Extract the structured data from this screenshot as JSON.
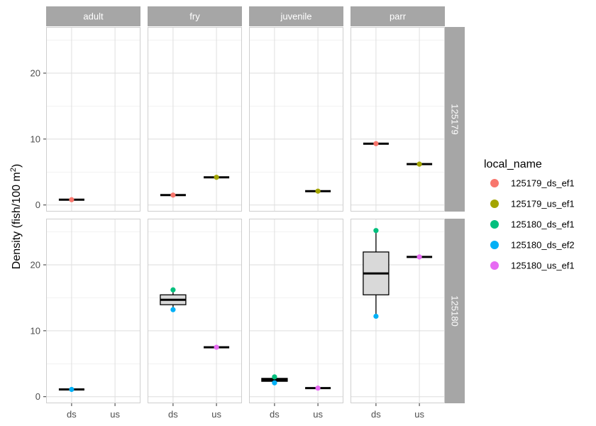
{
  "chart_data": {
    "type": "box",
    "ylabel": "Density (fish/100 m",
    "ylabel_superscript": "2",
    "ylabel_close": ")",
    "facet_cols": [
      "adult",
      "fry",
      "juvenile",
      "parr"
    ],
    "facet_rows": [
      "125179",
      "125180"
    ],
    "x_categories": [
      "ds",
      "us"
    ],
    "ylim": [
      -1,
      27
    ],
    "y_ticks": [
      0,
      10,
      20
    ],
    "grid": true,
    "legend": {
      "title": "local_name",
      "position": "right",
      "entries": [
        {
          "name": "125179_ds_ef1",
          "color": "#F8766D"
        },
        {
          "name": "125179_us_ef1",
          "color": "#A3A500"
        },
        {
          "name": "125180_ds_ef1",
          "color": "#00BF7D"
        },
        {
          "name": "125180_ds_ef2",
          "color": "#00B0F6"
        },
        {
          "name": "125180_us_ef1",
          "color": "#E76BF3"
        }
      ]
    },
    "panels": [
      {
        "row": "125179",
        "col": "adult",
        "boxes": [
          {
            "x": "ds",
            "lower": 0.8,
            "q1": 0.8,
            "median": 0.8,
            "q3": 0.8,
            "upper": 0.8,
            "points": [
              {
                "y": 0.8,
                "series": "125179_ds_ef1"
              }
            ]
          }
        ]
      },
      {
        "row": "125179",
        "col": "fry",
        "boxes": [
          {
            "x": "ds",
            "lower": 1.5,
            "q1": 1.5,
            "median": 1.5,
            "q3": 1.5,
            "upper": 1.5,
            "points": [
              {
                "y": 1.5,
                "series": "125179_ds_ef1"
              }
            ]
          },
          {
            "x": "us",
            "lower": 4.2,
            "q1": 4.2,
            "median": 4.2,
            "q3": 4.2,
            "upper": 4.2,
            "points": [
              {
                "y": 4.2,
                "series": "125179_us_ef1"
              }
            ]
          }
        ]
      },
      {
        "row": "125179",
        "col": "juvenile",
        "boxes": [
          {
            "x": "us",
            "lower": 2.1,
            "q1": 2.1,
            "median": 2.1,
            "q3": 2.1,
            "upper": 2.1,
            "points": [
              {
                "y": 2.1,
                "series": "125179_us_ef1"
              }
            ]
          }
        ]
      },
      {
        "row": "125179",
        "col": "parr",
        "boxes": [
          {
            "x": "ds",
            "lower": 9.3,
            "q1": 9.3,
            "median": 9.3,
            "q3": 9.3,
            "upper": 9.3,
            "points": [
              {
                "y": 9.3,
                "series": "125179_ds_ef1"
              }
            ]
          },
          {
            "x": "us",
            "lower": 6.2,
            "q1": 6.2,
            "median": 6.2,
            "q3": 6.2,
            "upper": 6.2,
            "points": [
              {
                "y": 6.2,
                "series": "125179_us_ef1"
              }
            ]
          }
        ]
      },
      {
        "row": "125180",
        "col": "adult",
        "boxes": [
          {
            "x": "ds",
            "lower": 1.1,
            "q1": 1.1,
            "median": 1.1,
            "q3": 1.1,
            "upper": 1.1,
            "points": [
              {
                "y": 1.1,
                "series": "125180_ds_ef2"
              }
            ]
          }
        ]
      },
      {
        "row": "125180",
        "col": "fry",
        "boxes": [
          {
            "x": "ds",
            "lower": 13.2,
            "q1": 13.95,
            "median": 14.7,
            "q3": 15.45,
            "upper": 16.2,
            "points": [
              {
                "y": 16.2,
                "series": "125180_ds_ef1"
              },
              {
                "y": 13.2,
                "series": "125180_ds_ef2"
              }
            ]
          },
          {
            "x": "us",
            "lower": 7.5,
            "q1": 7.5,
            "median": 7.5,
            "q3": 7.5,
            "upper": 7.5,
            "points": [
              {
                "y": 7.5,
                "series": "125180_us_ef1"
              }
            ]
          }
        ]
      },
      {
        "row": "125180",
        "col": "juvenile",
        "boxes": [
          {
            "x": "ds",
            "lower": 2.1,
            "q1": 2.33,
            "median": 2.55,
            "q3": 2.78,
            "upper": 3.0,
            "points": [
              {
                "y": 3.0,
                "series": "125180_ds_ef1"
              },
              {
                "y": 2.1,
                "series": "125180_ds_ef2"
              }
            ]
          },
          {
            "x": "us",
            "lower": 1.3,
            "q1": 1.3,
            "median": 1.3,
            "q3": 1.3,
            "upper": 1.3,
            "points": [
              {
                "y": 1.3,
                "series": "125180_us_ef1"
              }
            ]
          }
        ]
      },
      {
        "row": "125180",
        "col": "parr",
        "boxes": [
          {
            "x": "ds",
            "lower": 12.2,
            "q1": 15.45,
            "median": 18.7,
            "q3": 21.95,
            "upper": 25.2,
            "points": [
              {
                "y": 25.2,
                "series": "125180_ds_ef1"
              },
              {
                "y": 12.2,
                "series": "125180_ds_ef2"
              }
            ]
          },
          {
            "x": "us",
            "lower": 21.2,
            "q1": 21.2,
            "median": 21.2,
            "q3": 21.2,
            "upper": 21.2,
            "points": [
              {
                "y": 21.2,
                "series": "125180_us_ef1"
              }
            ]
          }
        ]
      }
    ]
  }
}
